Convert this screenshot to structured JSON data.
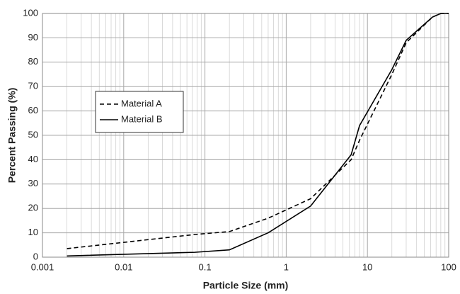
{
  "chart_data": {
    "type": "line",
    "x_label": "Particle Size (mm)",
    "y_label": "Percent Passing (%)",
    "x": [
      0.002,
      0.075,
      0.2,
      0.6,
      2,
      6.3,
      8,
      20,
      30,
      63,
      80,
      100
    ],
    "series": [
      {
        "name": "Material A",
        "color": "#000000",
        "linestyle": "dashed",
        "values": [
          3.5,
          9.3,
          10.5,
          16,
          24,
          40,
          48,
          75,
          88,
          98.5,
          100,
          100
        ]
      },
      {
        "name": "Material B",
        "color": "#000000",
        "linestyle": "solid",
        "values": [
          0.5,
          2,
          3,
          10,
          21,
          42,
          54,
          77,
          89,
          98.5,
          100,
          100
        ]
      }
    ],
    "xlim": [
      0.001,
      100
    ],
    "xticks": [
      0.001,
      0.01,
      0.1,
      1,
      10,
      100
    ],
    "ylim": [
      0,
      100
    ],
    "yticks": [
      0,
      10,
      20,
      30,
      40,
      50,
      60,
      70,
      80,
      90,
      100
    ],
    "x_scale": "log",
    "grid": true,
    "legend_position": "upper left"
  }
}
